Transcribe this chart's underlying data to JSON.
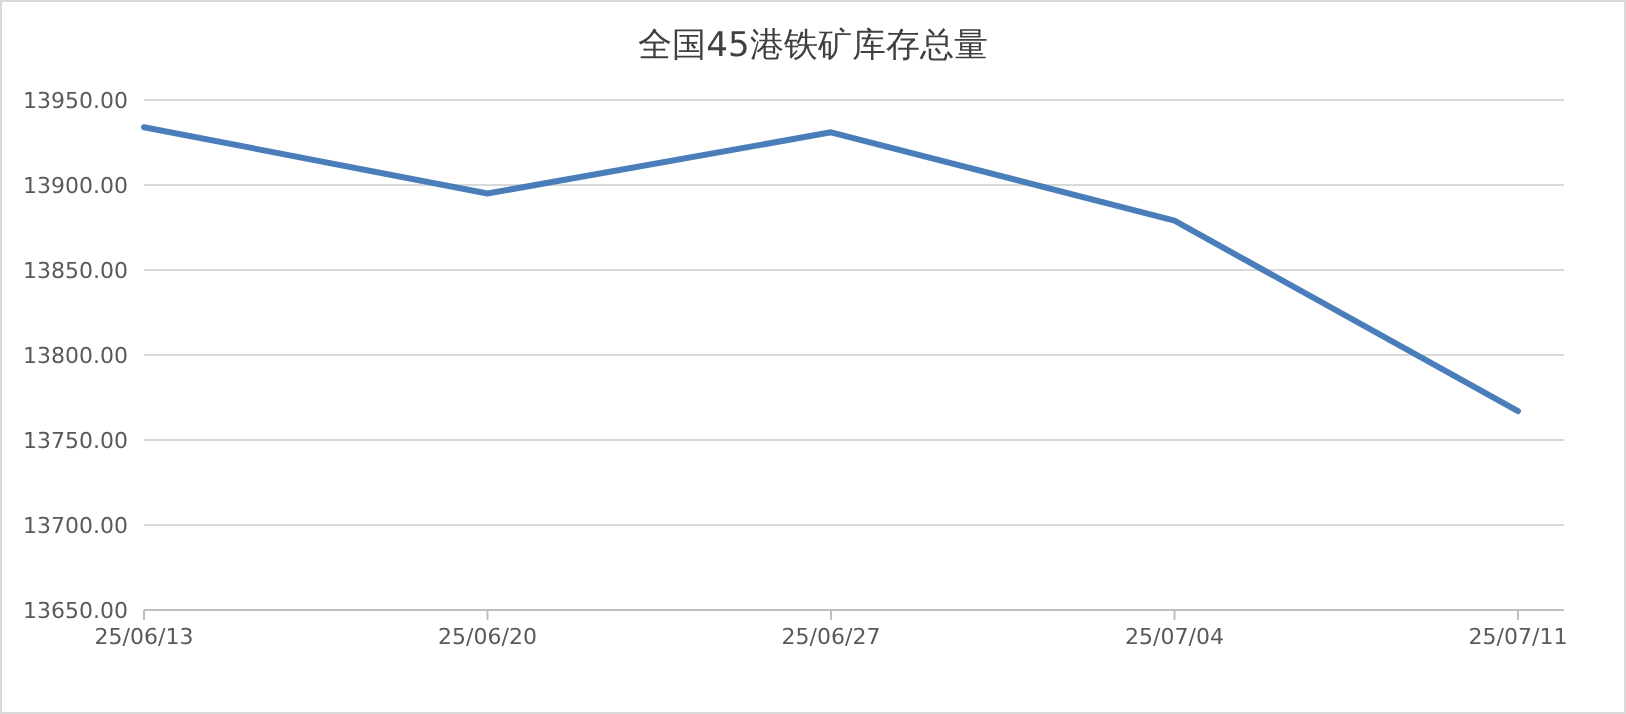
{
  "chart_data": {
    "type": "line",
    "title": "全国45港铁矿库存总量",
    "categories": [
      "25/06/13",
      "25/06/20",
      "25/06/27",
      "25/07/04",
      "25/07/11"
    ],
    "series": [
      {
        "color": "#4a7ebb",
        "values": [
          13934,
          13895,
          13931,
          13879,
          13767
        ]
      }
    ],
    "ylim": [
      13650,
      13950
    ],
    "yticks": [
      {
        "value": 13650,
        "label": "13650.00"
      },
      {
        "value": 13700,
        "label": "13700.00"
      },
      {
        "value": 13750,
        "label": "13750.00"
      },
      {
        "value": 13800,
        "label": "13800.00"
      },
      {
        "value": 13850,
        "label": "13850.00"
      },
      {
        "value": 13900,
        "label": "13900.00"
      },
      {
        "value": 13950,
        "label": "13950.00"
      }
    ],
    "grid": "y",
    "marker": "none",
    "line_style": "solid"
  }
}
